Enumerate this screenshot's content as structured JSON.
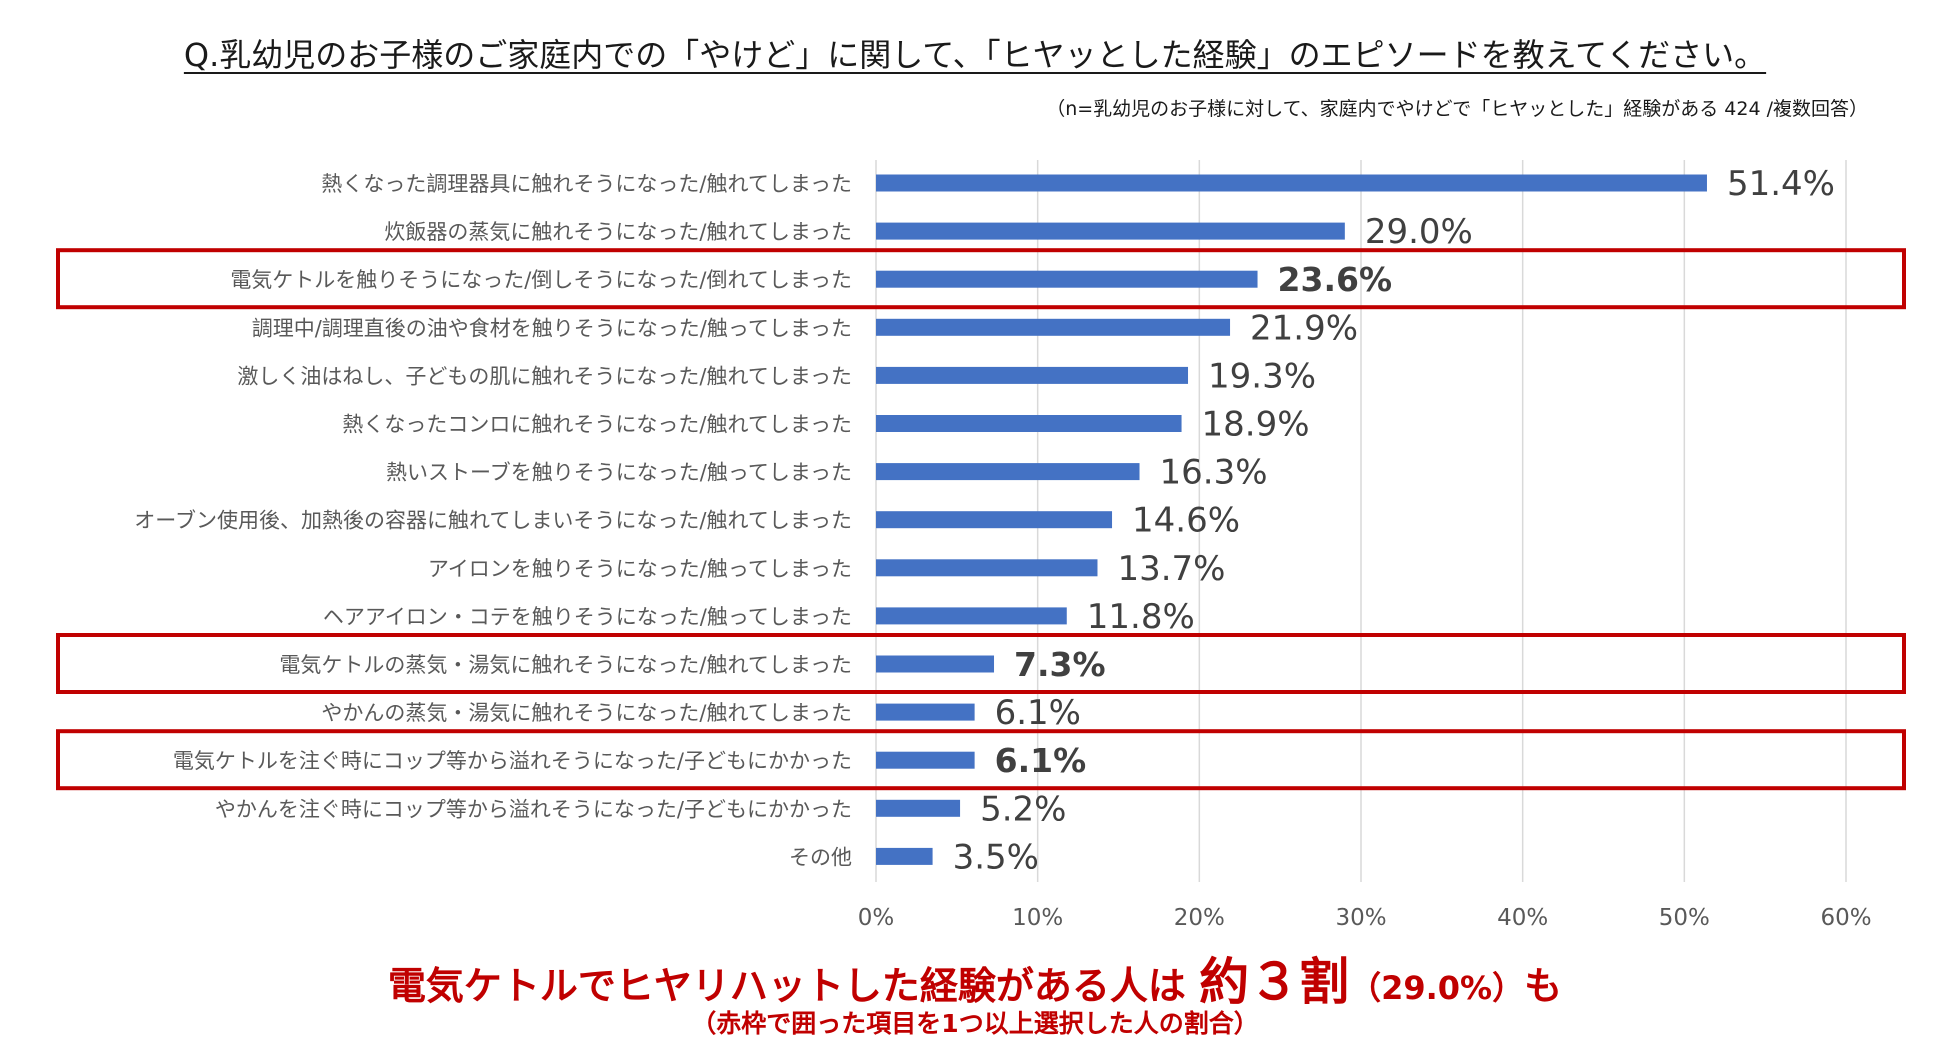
{
  "chart_data": {
    "type": "bar",
    "orientation": "horizontal",
    "title": "Q.乳幼児のお子様のご家庭内での「やけど」に関して、「ヒヤッとした経験」のエピソードを教えてください。",
    "subtitle": "（n=乳幼児のお子様に対して、家庭内でやけどで「ヒヤッとした」経験がある 424 /複数回答）",
    "categories": [
      "熱くなった調理器具に触れそうになった/触れてしまった",
      "炊飯器の蒸気に触れそうになった/触れてしまった",
      "電気ケトルを触りそうになった/倒しそうになった/倒れてしまった",
      "調理中/調理直後の油や食材を触りそうになった/触ってしまった",
      "激しく油はねし、子どもの肌に触れそうになった/触れてしまった",
      "熱くなったコンロに触れそうになった/触れてしまった",
      "熱いストーブを触りそうになった/触ってしまった",
      "オーブン使用後、加熱後の容器に触れてしまいそうになった/触れてしまった",
      "アイロンを触りそうになった/触ってしまった",
      "ヘアアイロン・コテを触りそうになった/触ってしまった",
      "電気ケトルの蒸気・湯気に触れそうになった/触れてしまった",
      "やかんの蒸気・湯気に触れそうになった/触れてしまった",
      "電気ケトルを注ぐ時にコップ等から溢れそうになった/子どもにかかった",
      "やかんを注ぐ時にコップ等から溢れそうになった/子どもにかかった",
      "その他"
    ],
    "values": [
      51.4,
      29.0,
      23.6,
      21.9,
      19.3,
      18.9,
      16.3,
      14.6,
      13.7,
      11.8,
      7.3,
      6.1,
      6.1,
      5.2,
      3.5
    ],
    "value_labels": [
      "51.4%",
      "29.0%",
      "23.6%",
      "21.9%",
      "19.3%",
      "18.9%",
      "16.3%",
      "14.6%",
      "13.7%",
      "11.8%",
      "7.3%",
      "6.1%",
      "6.1%",
      "5.2%",
      "3.5%"
    ],
    "highlighted": [
      2,
      10,
      12
    ],
    "xlim": [
      0,
      60
    ],
    "xticks": [
      0,
      10,
      20,
      30,
      40,
      50,
      60
    ],
    "xtick_labels": [
      "0%",
      "10%",
      "20%",
      "30%",
      "40%",
      "50%",
      "60%"
    ],
    "grid": true,
    "legend": "none",
    "colors": {
      "bar": "#4472c4",
      "grid": "#d9d9d9",
      "highlight_box": "#c00000",
      "label": "#404040"
    }
  },
  "callout": {
    "main": "電気ケトルでヒヤリハットした経験がある人は",
    "big": "約３割",
    "pct": "（29.0%）",
    "end": "も",
    "note": "（赤枠で囲った項目を1つ以上選択した人の割合）"
  }
}
